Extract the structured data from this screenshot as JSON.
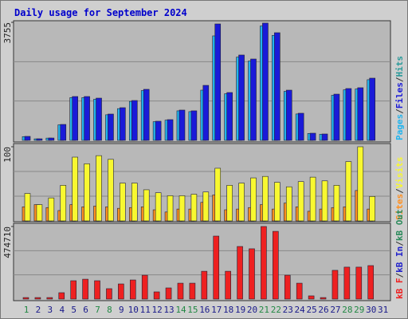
{
  "title": "Daily usage for September 2024",
  "legend_separator": "/",
  "chart_data": [
    {
      "type": "bar",
      "ylim": [
        0,
        3755
      ],
      "yticks": [
        3755
      ],
      "categories": [
        "1",
        "2",
        "3",
        "4",
        "5",
        "6",
        "7",
        "8",
        "9",
        "10",
        "11",
        "12",
        "13",
        "14",
        "15",
        "16",
        "17",
        "18",
        "19",
        "20",
        "21",
        "22",
        "23",
        "24",
        "25",
        "26",
        "27",
        "28",
        "29",
        "30",
        "31"
      ],
      "series": [
        {
          "name": "Pages",
          "color": "#22b4ee",
          "values": [
            120,
            48,
            72,
            495,
            1360,
            1360,
            1310,
            815,
            1010,
            1240,
            1585,
            595,
            645,
            940,
            915,
            1598,
            3324,
            1485,
            2650,
            2525,
            3640,
            3340,
            1560,
            840,
            220,
            196,
            1435,
            1610,
            1635,
            1930,
            0
          ]
        },
        {
          "name": "Files",
          "color": "#1a1ad8",
          "values": [
            127,
            50,
            75,
            507,
            1395,
            1395,
            1344,
            837,
            1040,
            1268,
            1624,
            609,
            660,
            964,
            940,
            1750,
            3704,
            1522,
            2715,
            2588,
            3730,
            3425,
            1598,
            863,
            228,
            203,
            1471,
            1649,
            1675,
            1979,
            0
          ]
        },
        {
          "name": "Hits",
          "color": "#2a9a9a"
        }
      ]
    },
    {
      "type": "bar",
      "ylim": [
        0,
        100
      ],
      "yticks": [
        100
      ],
      "categories": [
        "1",
        "2",
        "3",
        "4",
        "5",
        "6",
        "7",
        "8",
        "9",
        "10",
        "11",
        "12",
        "13",
        "14",
        "15",
        "16",
        "17",
        "18",
        "19",
        "20",
        "21",
        "22",
        "23",
        "24",
        "25",
        "26",
        "27",
        "28",
        "29",
        "30",
        "31"
      ],
      "series": [
        {
          "name": "Sites",
          "color": "#ff9020",
          "values": [
            19,
            22,
            18,
            14,
            22,
            19,
            20,
            19,
            17,
            18,
            19,
            15,
            12,
            16,
            16,
            25,
            35,
            15,
            16,
            18,
            22,
            16,
            24,
            19,
            13,
            16,
            18,
            19,
            41,
            16,
            0
          ]
        },
        {
          "name": "Visits",
          "color": "#f8f830",
          "values": [
            37,
            22,
            31,
            48,
            86,
            77,
            88,
            83,
            51,
            51,
            42,
            38,
            34,
            34,
            36,
            39,
            71,
            48,
            51,
            58,
            60,
            52,
            46,
            53,
            59,
            54,
            48,
            80,
            100,
            33,
            0
          ]
        }
      ]
    },
    {
      "type": "bar",
      "ylim": [
        0,
        474710
      ],
      "yticks": [
        474710
      ],
      "categories": [
        "1",
        "2",
        "3",
        "4",
        "5",
        "6",
        "7",
        "8",
        "9",
        "10",
        "11",
        "12",
        "13",
        "14",
        "15",
        "16",
        "17",
        "18",
        "19",
        "20",
        "21",
        "22",
        "23",
        "24",
        "25",
        "26",
        "27",
        "28",
        "29",
        "30",
        "31"
      ],
      "category_colors": [
        "#228844",
        "#1a1a8a",
        "#1a1a8a",
        "#1a1a8a",
        "#1a1a8a",
        "#1a1a8a",
        "#228844",
        "#228844",
        "#1a1a8a",
        "#1a1a8a",
        "#1a1a8a",
        "#1a1a8a",
        "#1a1a8a",
        "#228844",
        "#228844",
        "#1a1a8a",
        "#1a1a8a",
        "#1a1a8a",
        "#1a1a8a",
        "#1a1a8a",
        "#228844",
        "#228844",
        "#1a1a8a",
        "#1a1a8a",
        "#1a1a8a",
        "#1a1a8a",
        "#1a1a8a",
        "#228844",
        "#228844",
        "#1a1a8a",
        "#1a1a8a"
      ],
      "series": [
        {
          "name": "kB F",
          "color": "#ee2020",
          "values": [
            10000,
            10000,
            10000,
            41700,
            120000,
            130000,
            120000,
            68000,
            99000,
            125000,
            156000,
            47000,
            73000,
            104000,
            104000,
            182000,
            412000,
            182000,
            344000,
            329000,
            474710,
            443000,
            156000,
            104000,
            21000,
            10000,
            188000,
            209000,
            209000,
            219000,
            0
          ]
        },
        {
          "name": "kB In",
          "color": "#2222cc"
        },
        {
          "name": "kB Out",
          "color": "#2a8a5a"
        }
      ]
    }
  ]
}
